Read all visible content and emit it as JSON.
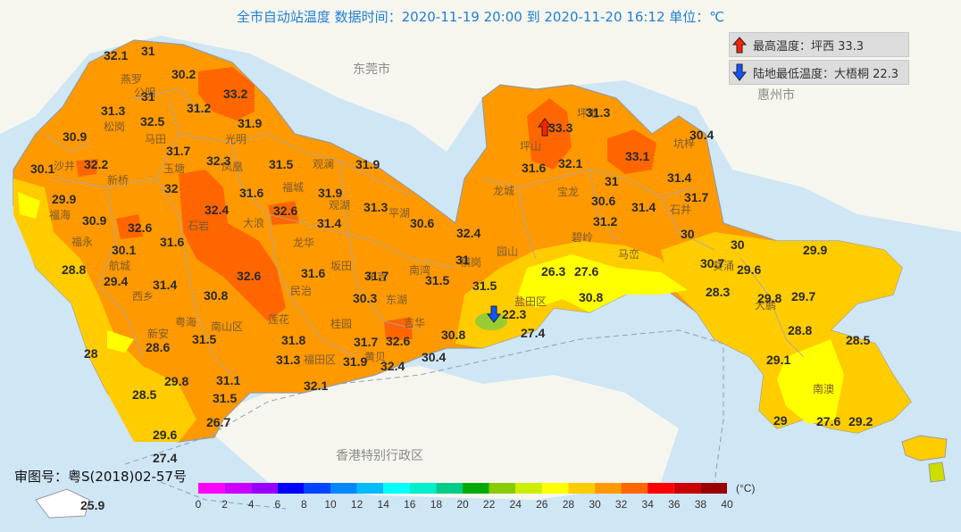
{
  "title": "全市自动站温度  数据时间：2020-11-19 20:00 到 2020-11-20 16:12  单位：℃",
  "legend": {
    "max_label": "最高温度：坪西 33.3",
    "min_label": "陆地最低温度：大梧桐 22.3"
  },
  "cities": {
    "dongguan": "东莞市",
    "huizhou": "惠州市",
    "hongkong": "香港特别行政区"
  },
  "approval_no": "审图号：粤S(2018)02-57号",
  "colors": {
    "sea": "#cfe6f5",
    "c26_28": "#ffff00",
    "c28_30": "#ffcc00",
    "c30_32": "#ff9900",
    "c32_34": "#ff6600",
    "c22_24": "#99cc33"
  },
  "color_scale": {
    "ticks": [
      "0",
      "2",
      "4",
      "6",
      "8",
      "10",
      "12",
      "14",
      "16",
      "18",
      "20",
      "22",
      "24",
      "26",
      "28",
      "30",
      "32",
      "34",
      "36",
      "38",
      "40"
    ],
    "colors": [
      "#ff00ff",
      "#cc00ff",
      "#9900ff",
      "#0000ff",
      "#0044ff",
      "#0088ff",
      "#00bbff",
      "#00ffff",
      "#00eecc",
      "#00cc88",
      "#00aa00",
      "#88cc00",
      "#ccee00",
      "#ffff00",
      "#ffcc00",
      "#ff9900",
      "#ff6600",
      "#ff0000",
      "#cc0000",
      "#990000"
    ],
    "unit": "(°C)"
  },
  "districts": [
    "燕罗",
    "公明",
    "松岗",
    "马田",
    "光明",
    "沙井",
    "玉塘",
    "凤凰",
    "新桥",
    "福永",
    "福海",
    "航城",
    "新安",
    "西乡",
    "石岩",
    "观澜",
    "福城",
    "观湖",
    "大浪",
    "民治",
    "龙华",
    "坂田",
    "南湾",
    "布吉",
    "东湖",
    "桂园",
    "黄贝",
    "莲花",
    "福田区",
    "南山区",
    "粤海",
    "龙城",
    "坪地",
    "坪山",
    "宝龙",
    "坑梓",
    "石井",
    "碧岭",
    "园山",
    "横岗",
    "马峦",
    "葵涌",
    "大鹏",
    "南澳",
    "盐田区",
    "吉华",
    "平湖"
  ],
  "readings": [
    "32.1",
    "31",
    "30.2",
    "33.2",
    "31",
    "31.3",
    "31.2",
    "32.5",
    "31.9",
    "30.9",
    "31.7",
    "30.1",
    "32.2",
    "32.3",
    "31.5",
    "31.9",
    "29.9",
    "32",
    "31.6",
    "31.9",
    "31.3",
    "30.9",
    "32.4",
    "32.6",
    "31.4",
    "30.6",
    "32.6",
    "30.1",
    "31.6",
    "32.4",
    "28.8",
    "29.4",
    "31.4",
    "32.6",
    "31.6",
    "31.7",
    "31.5",
    "30.8",
    "30.3",
    "31",
    "31.5",
    "31.5",
    "26.3",
    "27.6",
    "30.8",
    "22.3",
    "28.6",
    "31.8",
    "31.7",
    "32.6",
    "30.8",
    "28",
    "31.3",
    "31.9",
    "32.4",
    "30.4",
    "29.8",
    "31.1",
    "28.5",
    "31.5",
    "32.1",
    "27.4",
    "26.7",
    "29.6",
    "27.4",
    "25.9",
    "33.3",
    "31.3",
    "33.1",
    "30.4",
    "31.6",
    "32.1",
    "31",
    "31.4",
    "31.4",
    "30.6",
    "31.7",
    "31.2",
    "30",
    "30",
    "29.9",
    "30.7",
    "29.6",
    "28.3",
    "29.8",
    "29.7",
    "28.8",
    "28.5",
    "29.1",
    "29",
    "27.6",
    "29.2"
  ]
}
